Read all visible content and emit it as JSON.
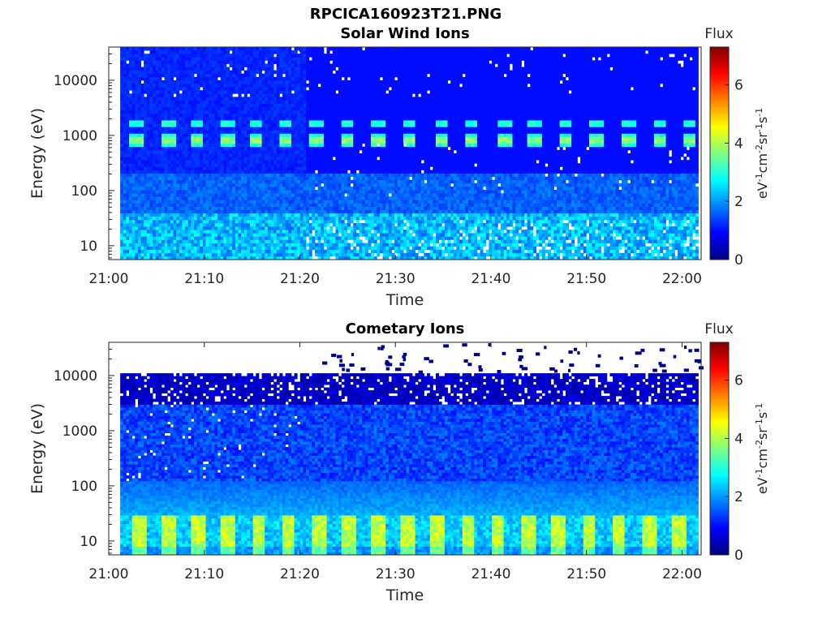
{
  "figure_title": "RPCICA160923T21.PNG",
  "colors": {
    "colormap": [
      "#000080",
      "#0000ff",
      "#0080ff",
      "#00ffff",
      "#80ff80",
      "#ffff00",
      "#ff8000",
      "#ff0000",
      "#800000"
    ],
    "axis": "#262626",
    "background": "#ffffff"
  },
  "chart_data": [
    {
      "type": "heatmap",
      "title": "Solar Wind Ions",
      "xlabel": "Time",
      "ylabel": "Energy (eV)",
      "x_ticks": [
        "21:00",
        "21:10",
        "21:20",
        "21:30",
        "21:40",
        "21:50",
        "22:00"
      ],
      "x_range_minutes": [
        0,
        62
      ],
      "data_start_minute": 1.2,
      "y_scale": "log",
      "y_range": [
        5.6,
        40000
      ],
      "y_ticks": [
        "10",
        "100",
        "1000",
        "10000"
      ],
      "colorbar": {
        "label": "Flux",
        "unit": "eV-1cm-2sr-1s-1",
        "range": [
          0,
          7.3
        ],
        "ticks": [
          "0",
          "2",
          "4",
          "6"
        ]
      },
      "features": {
        "beam_energy_eV": 820,
        "beam_flux_peak": 3.9,
        "beam_secondary_energy_eV": 1700,
        "beam_times_minutes": [
          2.8,
          6.1,
          9.1,
          12.3,
          15.2,
          18.4,
          21.6,
          24.8,
          28.1,
          31.3,
          34.7,
          37.8,
          41.3,
          44.4,
          47.6,
          50.9,
          54.3,
          57.5,
          60.6
        ],
        "background_flux": 1.0,
        "lowE_flux": 2.2,
        "change_at_minute": 20.5
      }
    },
    {
      "type": "heatmap",
      "title": "Cometary Ions",
      "xlabel": "Time",
      "ylabel": "Energy (eV)",
      "x_ticks": [
        "21:00",
        "21:10",
        "21:20",
        "21:30",
        "21:40",
        "21:50",
        "22:00"
      ],
      "x_range_minutes": [
        0,
        62
      ],
      "data_start_minute": 1.2,
      "y_scale": "log",
      "y_range": [
        5.6,
        40000
      ],
      "y_ticks": [
        "10",
        "100",
        "1000",
        "10000"
      ],
      "colorbar": {
        "label": "Flux",
        "unit": "eV-1cm-2sr-1s-1",
        "range": [
          0,
          7.3
        ],
        "ticks": [
          "0",
          "2",
          "4",
          "6"
        ]
      },
      "features": {
        "data_upper_energy_eV": 11000,
        "lowE_band_eV": [
          6,
          28
        ],
        "lowE_peak_flux": 4.2,
        "lowE_base_flux": 2.4,
        "peak_times_minutes": [
          3.0,
          6.1,
          9.2,
          12.3,
          15.5,
          18.6,
          21.8,
          24.9,
          28.0,
          31.2,
          34.3,
          37.5,
          40.6,
          43.8,
          46.9,
          50.1,
          53.2,
          56.4,
          59.5
        ],
        "mid_flux": 1.4,
        "high_flux": 0.5
      }
    }
  ]
}
